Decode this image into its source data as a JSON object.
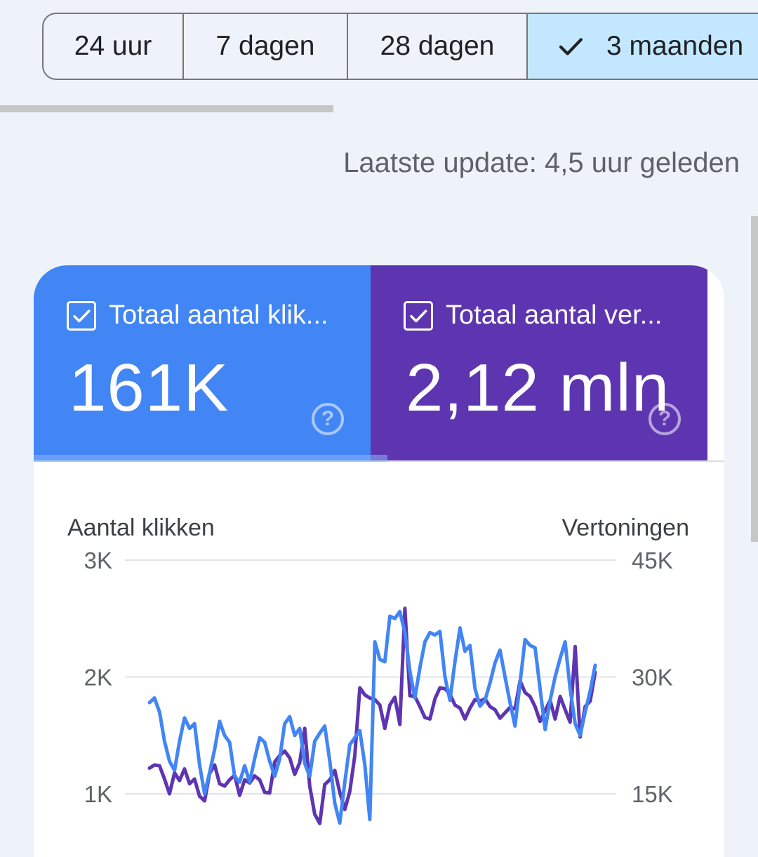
{
  "range_selector": {
    "options": [
      {
        "label": "24 uur",
        "selected": false
      },
      {
        "label": "7 dagen",
        "selected": false
      },
      {
        "label": "28 dagen",
        "selected": false
      },
      {
        "label": "3 maanden",
        "selected": true
      }
    ],
    "check_icon": "check-icon"
  },
  "status": {
    "last_update": "Laatste update: 4,5 uur geleden"
  },
  "metrics": {
    "clicks": {
      "label": "Totaal aantal klik...",
      "value": "161K",
      "checked": true,
      "color": "#4285f4"
    },
    "impressions": {
      "label": "Totaal aantal ver...",
      "value": "2,12 mln",
      "checked": true,
      "color": "#5e35b1"
    }
  },
  "chart_data": {
    "type": "line",
    "left_axis": {
      "title": "Aantal klikken",
      "ticks": [
        "3K",
        "2K",
        "1K"
      ],
      "tick_values": [
        3000,
        2000,
        1000
      ],
      "range": [
        0,
        3000
      ]
    },
    "right_axis": {
      "title": "Vertoningen",
      "ticks": [
        "45K",
        "30K",
        "15K"
      ],
      "tick_values": [
        45000,
        30000,
        15000
      ],
      "range": [
        0,
        45000
      ]
    },
    "grid": true,
    "series": [
      {
        "name": "Aantal klikken",
        "axis": "left",
        "color": "#4285f4",
        "values": [
          1780,
          1820,
          1700,
          1450,
          1280,
          1200,
          1450,
          1650,
          1560,
          1600,
          1250,
          1000,
          1180,
          1380,
          1620,
          1500,
          1440,
          1150,
          1100,
          1240,
          1100,
          1300,
          1480,
          1440,
          1280,
          1150,
          1300,
          1600,
          1660,
          1500,
          1560,
          1260,
          1150,
          1450,
          1520,
          1580,
          1280,
          920,
          750,
          1100,
          1420,
          1480,
          1540,
          1250,
          780,
          2300,
          2150,
          2130,
          2520,
          2500,
          2560,
          2380,
          2050,
          1820,
          2080,
          2300,
          2380,
          2360,
          2390,
          2000,
          1800,
          2130,
          2420,
          2220,
          2270,
          1900,
          1750,
          1800,
          1950,
          2120,
          2230,
          2000,
          1780,
          1580,
          1950,
          2320,
          2270,
          2250,
          1900,
          1550,
          1800,
          2000,
          2160,
          2300,
          1900,
          1600,
          1500,
          1700,
          1880,
          2100
        ]
      },
      {
        "name": "Totaal aantal vertoningen",
        "axis": "right",
        "color": "#5e35b1",
        "values": [
          18300,
          18700,
          18600,
          16900,
          15000,
          17700,
          16700,
          18200,
          16300,
          16900,
          14700,
          14100,
          17600,
          18700,
          16300,
          16000,
          16800,
          17400,
          14800,
          16800,
          16400,
          17300,
          16800,
          15200,
          15100,
          19100,
          19900,
          20500,
          19600,
          17500,
          19000,
          23400,
          16000,
          12400,
          11200,
          16200,
          16800,
          18000,
          15200,
          13000,
          15300,
          19900,
          28600,
          27700,
          27300,
          27100,
          26400,
          23400,
          26400,
          27400,
          23900,
          38800,
          27600,
          27500,
          26200,
          24800,
          24600,
          27200,
          28600,
          28500,
          27800,
          26400,
          26000,
          24600,
          26000,
          27100,
          26900,
          27200,
          26200,
          25800,
          24700,
          25400,
          26100,
          25900,
          29500,
          28000,
          27500,
          26200,
          24300,
          25700,
          27000,
          24600,
          27500,
          25800,
          24200,
          33900,
          22300,
          26200,
          26900,
          30600
        ]
      }
    ]
  }
}
